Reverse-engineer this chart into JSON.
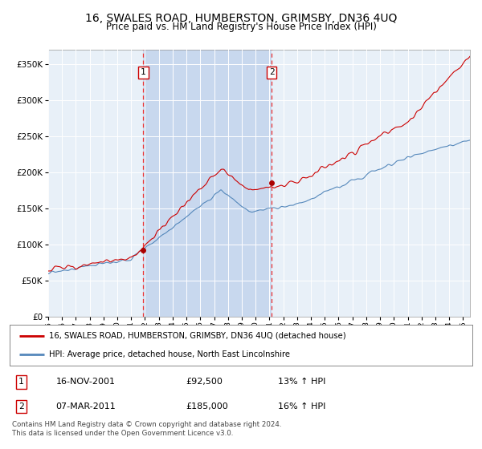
{
  "title": "16, SWALES ROAD, HUMBERSTON, GRIMSBY, DN36 4UQ",
  "subtitle": "Price paid vs. HM Land Registry's House Price Index (HPI)",
  "background_color": "#ffffff",
  "plot_bg_color": "#e8f0f8",
  "ylabel_color": "#000000",
  "sale1_x": 2001.88,
  "sale1_price": 92500,
  "sale2_x": 2011.17,
  "sale2_price": 185000,
  "legend_line1": "16, SWALES ROAD, HUMBERSTON, GRIMSBY, DN36 4UQ (detached house)",
  "legend_line2": "HPI: Average price, detached house, North East Lincolnshire",
  "table_row1": [
    "1",
    "16-NOV-2001",
    "£92,500",
    "13% ↑ HPI"
  ],
  "table_row2": [
    "2",
    "07-MAR-2011",
    "£185,000",
    "16% ↑ HPI"
  ],
  "footer": "Contains HM Land Registry data © Crown copyright and database right 2024.\nThis data is licensed under the Open Government Licence v3.0.",
  "ylim": [
    0,
    370000
  ],
  "yticks": [
    0,
    50000,
    100000,
    150000,
    200000,
    250000,
    300000,
    350000
  ],
  "red_line_color": "#cc0000",
  "blue_line_color": "#5588bb",
  "shade_color": "#c8d8ee",
  "sale_marker_color": "#aa0000",
  "vline_color": "#ee3333",
  "box_color": "#cc0000",
  "grid_color": "#cccccc",
  "xmin": 1995,
  "xmax": 2025.5
}
